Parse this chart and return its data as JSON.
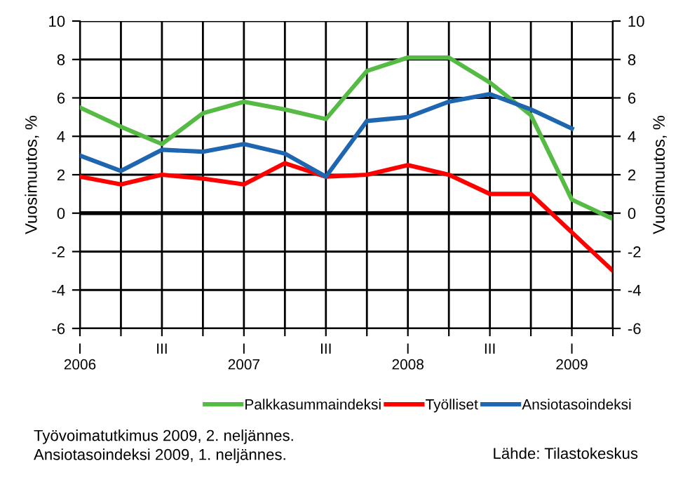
{
  "chart_data": {
    "type": "line",
    "categories": [
      "I\n2006",
      null,
      "III",
      null,
      "I\n2007",
      null,
      "III",
      null,
      "I\n2008",
      null,
      "III",
      null,
      "I\n2009",
      null
    ],
    "series": [
      {
        "name": "Palkkasummaindeksi",
        "color": "#55bb44",
        "values": [
          5.5,
          4.5,
          3.6,
          5.2,
          5.8,
          5.4,
          4.9,
          7.4,
          8.1,
          8.1,
          6.8,
          5.1,
          0.7,
          -0.3
        ]
      },
      {
        "name": "Työlliset",
        "color": "#ff0000",
        "values": [
          1.9,
          1.5,
          2.0,
          1.8,
          1.5,
          2.6,
          1.9,
          2.0,
          2.5,
          2.0,
          1.0,
          1.0,
          -1.0,
          -3.0
        ]
      },
      {
        "name": "Ansiotasoindeksi",
        "color": "#1f66b0",
        "values": [
          3.0,
          2.2,
          3.3,
          3.2,
          3.6,
          3.1,
          1.9,
          4.8,
          5.0,
          5.8,
          6.2,
          5.4,
          4.4,
          null
        ]
      }
    ],
    "ylabel": "Vuosimuutos, %",
    "y2label": "Vuosimuutos, %",
    "ylim": [
      -6,
      10
    ],
    "yticks": [
      -6,
      -4,
      -2,
      0,
      2,
      4,
      6,
      8,
      10
    ],
    "y2lim": [
      -6,
      10
    ],
    "y2ticks": [
      -6,
      -4,
      -2,
      0,
      2,
      4,
      6,
      8,
      10
    ],
    "ref_lines": [
      {
        "axis": "y",
        "value": 0,
        "label": null,
        "color": "#000000"
      }
    ],
    "grid": true,
    "legend": "bottom",
    "marker": "none",
    "line_style": "solid",
    "annotations": [
      "Työvoimatutkimus 2009, 2. neljännes.\nAnsiotasoindeksi 2009, 1. neljännes.",
      "Lähde: Tilastokeskus"
    ]
  }
}
